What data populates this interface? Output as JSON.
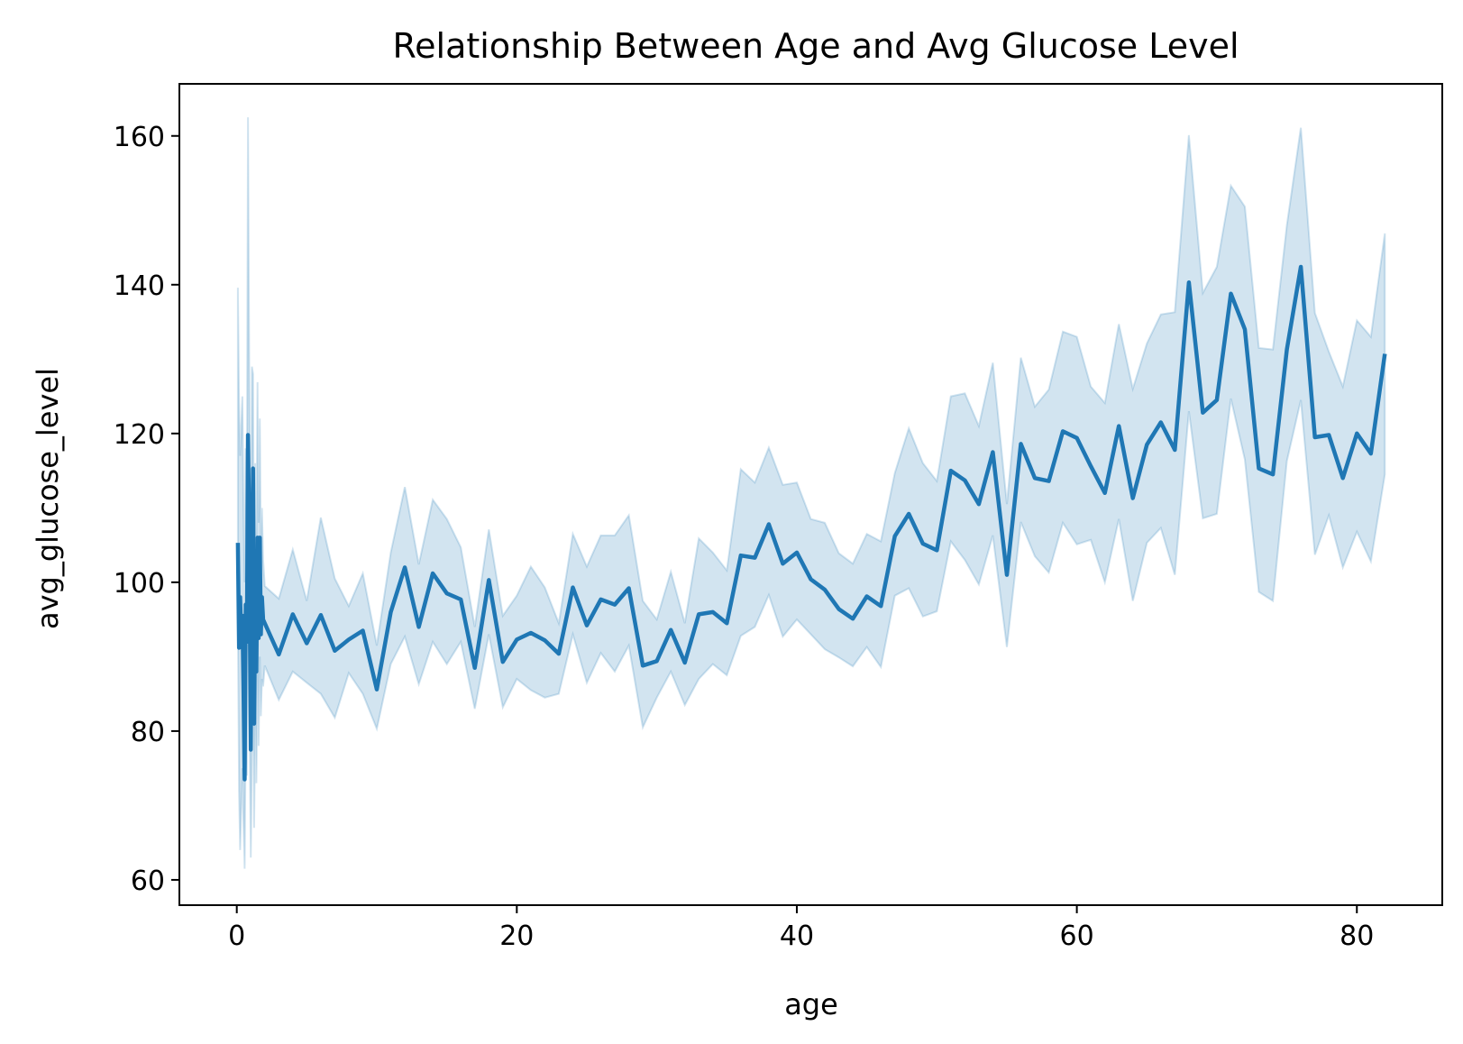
{
  "chart_data": {
    "type": "line",
    "title": "Relationship Between Age and Avg Glucose Level",
    "xlabel": "age",
    "ylabel": "avg_glucose_level",
    "xlim": [
      -4.1,
      86.1
    ],
    "ylim": [
      56.6,
      167.0
    ],
    "xticks": [
      0,
      20,
      40,
      60,
      80
    ],
    "yticks": [
      60,
      80,
      100,
      120,
      140,
      160
    ],
    "grid": false,
    "legend": "none",
    "colors": {
      "line": "#1f77b4",
      "band": "#1f77b4",
      "frame": "#000000"
    },
    "series": [
      {
        "x": [
          0.08,
          0.16,
          0.24,
          0.32,
          0.4,
          0.48,
          0.56,
          0.64,
          0.72,
          0.8,
          0.88,
          1.0,
          1.08,
          1.16,
          1.24,
          1.32,
          1.4,
          1.48,
          1.56,
          1.64,
          1.72,
          1.8,
          1.88,
          2,
          3,
          4,
          5,
          6,
          7,
          8,
          9,
          10,
          11,
          12,
          13,
          14,
          15,
          16,
          17,
          18,
          19,
          20,
          21,
          22,
          23,
          24,
          25,
          26,
          27,
          28,
          29,
          30,
          31,
          32,
          33,
          34,
          35,
          36,
          37,
          38,
          39,
          40,
          41,
          42,
          43,
          44,
          45,
          46,
          47,
          48,
          49,
          50,
          51,
          52,
          53,
          54,
          55,
          56,
          57,
          58,
          59,
          60,
          61,
          62,
          63,
          64,
          65,
          66,
          67,
          68,
          69,
          70,
          71,
          72,
          73,
          74,
          75,
          76,
          77,
          78,
          79,
          80,
          81,
          82
        ],
        "y": [
          105.3,
          91.2,
          98.0,
          92.5,
          95.5,
          86.0,
          73.5,
          97.0,
          92.0,
          119.8,
          108.0,
          77.5,
          99.0,
          115.3,
          81.0,
          98.0,
          88.0,
          106.0,
          92.5,
          106.0,
          93.0,
          98.0,
          95.0,
          94.5,
          90.3,
          95.7,
          91.8,
          95.6,
          90.8,
          92.3,
          93.5,
          85.6,
          96.0,
          102.0,
          94.0,
          101.2,
          98.5,
          97.7,
          88.5,
          100.3,
          89.3,
          92.3,
          93.2,
          92.2,
          90.4,
          99.3,
          94.2,
          97.7,
          97.0,
          99.2,
          88.8,
          89.4,
          93.6,
          89.2,
          95.7,
          96.0,
          94.5,
          103.6,
          103.3,
          107.8,
          102.5,
          104.0,
          100.4,
          99.0,
          96.4,
          95.1,
          98.1,
          96.8,
          106.2,
          109.2,
          105.2,
          104.3,
          115.0,
          113.7,
          110.5,
          117.5,
          101.0,
          118.6,
          114.0,
          113.6,
          120.3,
          119.4,
          115.6,
          112.0,
          121.0,
          111.3,
          118.5,
          121.5,
          117.8,
          140.3,
          122.8,
          124.5,
          138.8,
          134.0,
          115.3,
          114.5,
          131.3,
          142.4,
          119.5,
          119.8,
          114.0,
          120.0,
          117.3,
          130.7
        ],
        "lower": [
          95.0,
          72.0,
          64.0,
          70.0,
          75.0,
          68.0,
          61.5,
          80.0,
          74.0,
          100.0,
          88.0,
          63.0,
          78.0,
          95.0,
          67.0,
          82.0,
          73.0,
          88.0,
          78.0,
          90.0,
          82.0,
          87.0,
          86.0,
          88.8,
          84.2,
          88.0,
          86.5,
          85.0,
          81.8,
          87.8,
          85.0,
          80.3,
          89.0,
          92.7,
          86.3,
          92.0,
          89.0,
          92.0,
          83.0,
          93.0,
          83.2,
          87.0,
          85.5,
          84.5,
          85.0,
          93.0,
          86.5,
          90.5,
          88.0,
          91.5,
          80.5,
          84.5,
          88.0,
          83.5,
          87.0,
          89.0,
          87.5,
          92.8,
          94.0,
          98.3,
          92.7,
          95.0,
          93.0,
          91.0,
          89.9,
          88.7,
          91.3,
          88.6,
          98.2,
          99.2,
          95.4,
          96.1,
          105.5,
          103.0,
          99.7,
          106.3,
          91.3,
          108.1,
          103.5,
          101.3,
          108.0,
          105.1,
          105.7,
          100.0,
          108.5,
          97.5,
          105.3,
          107.3,
          101.0,
          123.0,
          108.6,
          109.2,
          124.7,
          116.5,
          98.7,
          97.5,
          116.3,
          124.5,
          103.7,
          109.0,
          102.0,
          106.8,
          102.8,
          114.5
        ],
        "upper": [
          139.6,
          124.2,
          117.0,
          121.0,
          125.0,
          110.0,
          100.0,
          118.0,
          112.0,
          162.5,
          131.0,
          94.0,
          129.0,
          128.0,
          97.0,
          116.0,
          104.0,
          126.9,
          108.0,
          122.0,
          105.0,
          110.0,
          103.0,
          99.5,
          97.8,
          104.4,
          97.5,
          108.7,
          100.5,
          96.8,
          101.2,
          91.5,
          104.0,
          112.8,
          102.4,
          111.1,
          108.5,
          104.7,
          94.0,
          107.1,
          95.5,
          98.2,
          102.1,
          99.3,
          94.5,
          106.5,
          102.1,
          106.3,
          106.3,
          109.0,
          97.5,
          95.0,
          101.4,
          94.5,
          105.9,
          104.0,
          101.6,
          115.2,
          113.4,
          118.1,
          113.1,
          113.4,
          108.5,
          108.0,
          103.9,
          102.5,
          106.5,
          105.5,
          114.7,
          120.7,
          116.0,
          113.6,
          125.0,
          125.4,
          121.0,
          129.5,
          110.5,
          130.2,
          123.6,
          125.9,
          133.7,
          133.0,
          126.3,
          124.1,
          134.7,
          126.0,
          132.1,
          136.0,
          136.3,
          160.1,
          138.9,
          142.4,
          153.3,
          150.5,
          131.5,
          131.3,
          148.0,
          161.1,
          136.2,
          131.0,
          126.3,
          135.2,
          133.0,
          146.9
        ]
      }
    ]
  }
}
